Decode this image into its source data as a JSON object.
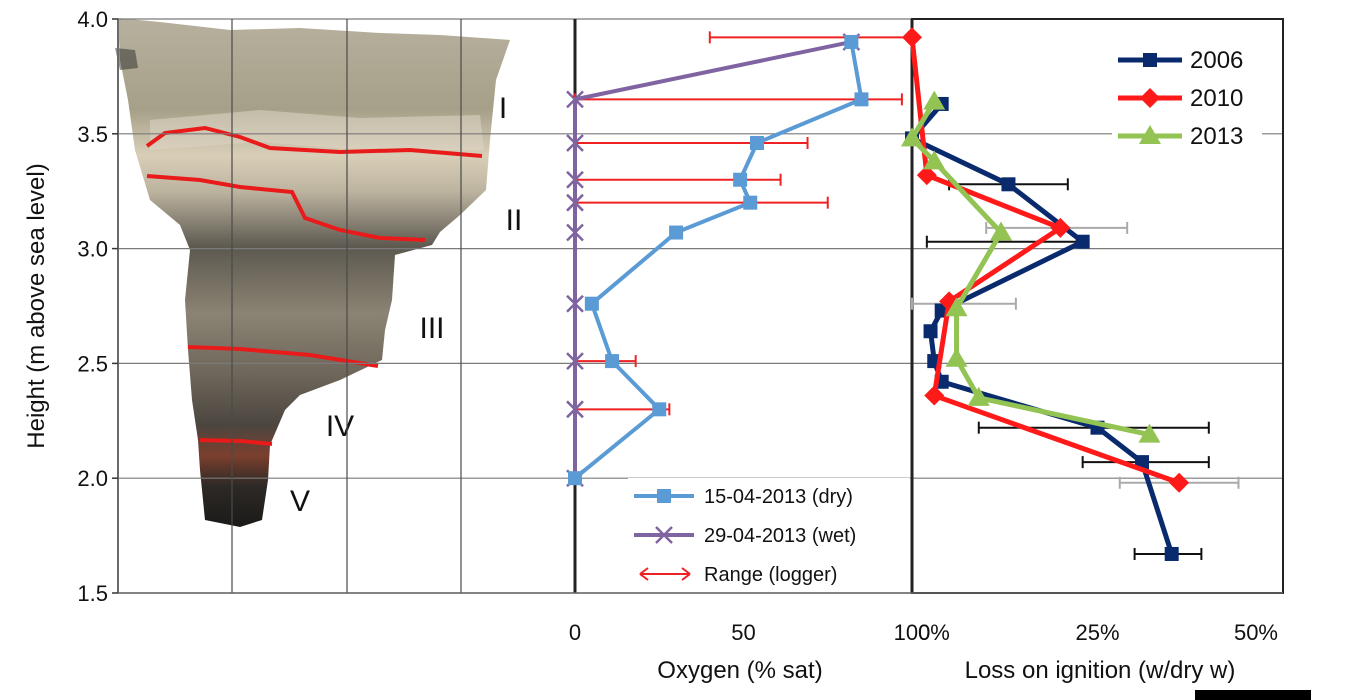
{
  "chart_data": [
    {
      "type": "image",
      "name": "core-photo",
      "zones": [
        "I",
        "II",
        "III",
        "IV",
        "V"
      ],
      "ylabel": "Height (m above sea level)",
      "ylim": [
        1.5,
        4.0
      ],
      "yticks": [
        "1.5",
        "2.0",
        "2.5",
        "3.0",
        "3.5",
        "4.0"
      ],
      "grid": true
    },
    {
      "type": "line",
      "xlabel": "Oxygen (% sat)",
      "xlim": [
        0,
        100
      ],
      "xticks": [
        "0",
        "50",
        "100"
      ],
      "ylim": [
        1.5,
        4.0
      ],
      "legend_position": "bottom-right",
      "series": [
        {
          "name": "15-04-2013 (dry)",
          "color": "#5b9bd5",
          "marker": "square",
          "points": [
            [
              0,
              2.0
            ],
            [
              25,
              2.3
            ],
            [
              11,
              2.51
            ],
            [
              5,
              2.76
            ],
            [
              30,
              3.07
            ],
            [
              52,
              3.2
            ],
            [
              49,
              3.3
            ],
            [
              54,
              3.46
            ],
            [
              85,
              3.65
            ],
            [
              82,
              3.9
            ]
          ]
        },
        {
          "name": "29-04-2013 (wet)",
          "color": "#8064a2",
          "marker": "x",
          "points": [
            [
              0,
              2.0
            ],
            [
              0,
              2.3
            ],
            [
              0,
              2.51
            ],
            [
              0,
              2.76
            ],
            [
              0,
              3.07
            ],
            [
              0,
              3.2
            ],
            [
              0,
              3.3
            ],
            [
              0,
              3.46
            ],
            [
              0,
              3.65
            ],
            [
              82,
              3.9
            ]
          ]
        }
      ],
      "ranges": {
        "name": "Range (logger)",
        "color": "#ee2222",
        "intervals": [
          [
            0,
            28,
            2.3
          ],
          [
            0,
            18,
            2.51
          ],
          [
            0,
            75,
            3.2
          ],
          [
            0,
            61,
            3.3
          ],
          [
            0,
            69,
            3.46
          ],
          [
            0,
            97,
            3.65
          ],
          [
            40,
            99,
            3.92
          ]
        ]
      }
    },
    {
      "type": "line",
      "xlabel": "Loss on ignition (w/dry w)",
      "xlim": [
        0,
        50
      ],
      "xticks": [
        "0%",
        "25%",
        "50%"
      ],
      "ylim": [
        1.5,
        4.0
      ],
      "legend_position": "top-right",
      "series": [
        {
          "name": "2006",
          "color": "#0a2a6e",
          "marker": "square",
          "points": [
            [
              35,
              1.67
            ],
            [
              31,
              2.07
            ],
            [
              25,
              2.22
            ],
            [
              4,
              2.42
            ],
            [
              3,
              2.51
            ],
            [
              2.5,
              2.64
            ],
            [
              4,
              2.73
            ],
            [
              23,
              3.03
            ],
            [
              13,
              3.28
            ],
            [
              0,
              3.48
            ],
            [
              4,
              3.63
            ]
          ],
          "errors": [
            [
              30,
              39,
              1.67
            ],
            [
              23,
              40,
              2.07
            ],
            [
              9,
              40,
              2.22
            ],
            [
              2,
              23,
              3.03
            ],
            [
              5,
              21,
              3.28
            ]
          ]
        },
        {
          "name": "2010",
          "color": "#ff1a1a",
          "marker": "diamond",
          "points": [
            [
              36,
              1.98
            ],
            [
              3,
              2.36
            ],
            [
              5,
              2.77
            ],
            [
              20,
              3.09
            ],
            [
              2,
              3.32
            ],
            [
              0,
              3.92
            ]
          ],
          "errors": [
            [
              28,
              44,
              1.98
            ],
            [
              10,
              29,
              3.09
            ]
          ]
        },
        {
          "name": "2013",
          "color": "#92c353",
          "marker": "triangle",
          "points": [
            [
              32,
              2.19
            ],
            [
              9,
              2.35
            ],
            [
              6,
              2.52
            ],
            [
              6,
              2.74
            ],
            [
              12,
              3.07
            ],
            [
              3,
              3.38
            ],
            [
              0,
              3.48
            ],
            [
              3,
              3.64
            ]
          ],
          "errors": [
            [
              0,
              14,
              2.76
            ]
          ]
        }
      ]
    }
  ]
}
